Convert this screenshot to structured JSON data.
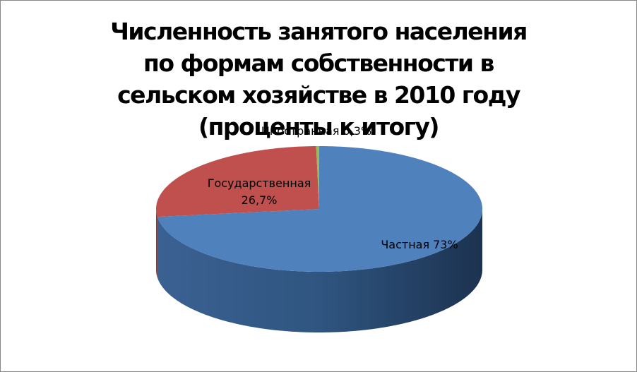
{
  "chart_data": {
    "type": "pie3d",
    "title": "Численность занятого населения по формам собственности в сельском хозяйстве в 2010 году (проценты к итогу)",
    "categories": [
      "Частная",
      "Государственная",
      "Иностранная"
    ],
    "values": [
      73,
      26.7,
      0.3
    ],
    "value_labels": [
      "73%",
      "26,7%",
      "0,3%"
    ],
    "colors": [
      "#4f81bd",
      "#c0504d",
      "#9bbb59"
    ]
  }
}
